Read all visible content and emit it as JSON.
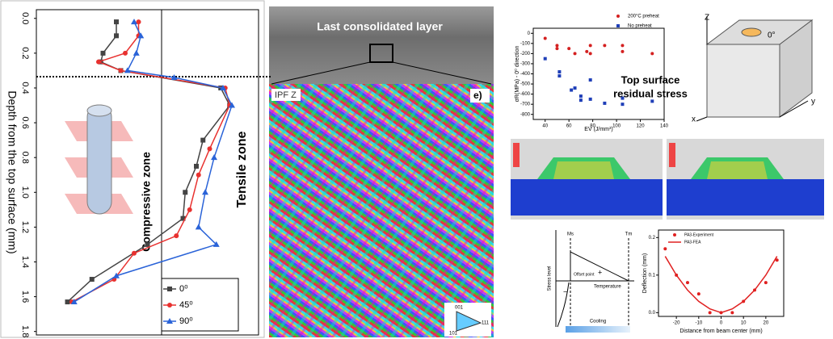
{
  "chart_data": [
    {
      "type": "line",
      "ylabel": "Depth from the top surface (mm)",
      "xlim": [
        0,
        100
      ],
      "ylim": [
        1.82,
        -0.05
      ],
      "yticks": [
        {
          "value": 0,
          "label": "0.0"
        },
        0.2,
        0.4,
        0.6,
        0.8,
        {
          "value": 1,
          "label": "1.0"
        },
        1.2,
        1.4,
        1.6,
        1.8
      ],
      "annotations": [
        "Compressive zone",
        "Tensile zone"
      ],
      "series": [
        {
          "name": "0⁰",
          "color": "#444444",
          "marker": "square",
          "mode": "lines+markers",
          "x": [
            36,
            36,
            30,
            29,
            38,
            83,
            87,
            75,
            72,
            67,
            66,
            50,
            25,
            14
          ],
          "values": [
            0.02,
            0.1,
            0.2,
            0.25,
            0.3,
            0.4,
            0.5,
            0.7,
            0.85,
            1.0,
            1.15,
            1.3,
            1.5,
            1.63
          ]
        },
        {
          "name": "45⁰",
          "color": "#e8312f",
          "marker": "circle",
          "mode": "lines+markers",
          "x": [
            46,
            46,
            40,
            28,
            38,
            85,
            87,
            78,
            73,
            69,
            63,
            44,
            35,
            16
          ],
          "values": [
            0.02,
            0.1,
            0.2,
            0.25,
            0.3,
            0.4,
            0.5,
            0.75,
            0.9,
            1.1,
            1.25,
            1.35,
            1.5,
            1.63
          ]
        },
        {
          "name": "90⁰",
          "color": "#2a63d8",
          "marker": "triangle",
          "mode": "lines+markers",
          "x": [
            44,
            47,
            45,
            41,
            62,
            84,
            88,
            80,
            76,
            73,
            81,
            36,
            17
          ],
          "values": [
            0.02,
            0.1,
            0.2,
            0.3,
            0.34,
            0.4,
            0.5,
            0.8,
            1.0,
            1.2,
            1.3,
            1.48,
            1.63
          ]
        }
      ]
    },
    {
      "type": "scatter",
      "ylabel": "σR(MPa) - 0⁰ direction",
      "xlabel": "EV (J/mm³)",
      "xlim": [
        30,
        140
      ],
      "ylim": [
        -850,
        50
      ],
      "xticks": [
        40,
        60,
        80,
        100,
        120,
        140
      ],
      "yticks": [
        0,
        -100,
        -200,
        -300,
        -400,
        -500,
        -600,
        -700,
        -800
      ],
      "annotations": [
        "Top surface",
        "residual stress"
      ],
      "series": [
        {
          "name": "200°C preheat",
          "color": "#d42020",
          "marker": "circle",
          "x": [
            40,
            50,
            50,
            60,
            65,
            75,
            78,
            78,
            90,
            105,
            105,
            130
          ],
          "values": [
            -50,
            -120,
            -150,
            -150,
            -200,
            -180,
            -120,
            -200,
            -120,
            -120,
            -180,
            -200
          ]
        },
        {
          "name": "No preheat",
          "color": "#1f3fb8",
          "marker": "square",
          "x": [
            40,
            52,
            52,
            62,
            65,
            70,
            70,
            78,
            78,
            90,
            105,
            105,
            130
          ],
          "values": [
            -250,
            -380,
            -420,
            -560,
            -540,
            -660,
            -620,
            -460,
            -650,
            -690,
            -640,
            -700,
            -670
          ]
        }
      ]
    },
    {
      "type": "line",
      "ylabel": "Deflection (mm)",
      "xlabel": "Distance from beam center (mm)",
      "xlim": [
        -28,
        28
      ],
      "ylim": [
        -0.01,
        0.22
      ],
      "xticks": [
        -20,
        -10,
        0,
        10,
        20
      ],
      "yticks": [
        {
          "value": 0,
          "label": "0.0"
        },
        0.1,
        0.2
      ],
      "series": [
        {
          "name": "PA3-Experiment",
          "color": "#e02020",
          "marker": "circle",
          "mode": "markers",
          "x": [
            -25,
            -20,
            -15,
            -10,
            -5,
            0,
            5,
            10,
            15,
            20,
            25
          ],
          "values": [
            0.17,
            0.1,
            0.08,
            0.05,
            0.0,
            0.0,
            0.0,
            0.03,
            0.06,
            0.08,
            0.14
          ]
        },
        {
          "name": "PA3-FEA",
          "color": "#e02020",
          "mode": "lines",
          "x": [
            -25,
            -20,
            -15,
            -10,
            -5,
            0,
            5,
            10,
            15,
            20,
            25
          ],
          "values": [
            0.15,
            0.1,
            0.06,
            0.03,
            0.01,
            0.0,
            0.01,
            0.03,
            0.06,
            0.1,
            0.15
          ]
        }
      ]
    }
  ],
  "micrograph": {
    "title": "Last consolidated layer",
    "map": "IPF Z",
    "panel": "e)",
    "key": [
      "001",
      "111",
      "101"
    ]
  },
  "cube": {
    "z": "Z",
    "y": "y",
    "x": "x",
    "angle": "0°"
  },
  "schematic": {
    "ms": "Ms",
    "tm": "Tm",
    "offset": "Offset point",
    "temperature": "Temperature",
    "stress": "Stress level",
    "cooling": "Cooling",
    "plus": "+",
    "minus": "−"
  }
}
